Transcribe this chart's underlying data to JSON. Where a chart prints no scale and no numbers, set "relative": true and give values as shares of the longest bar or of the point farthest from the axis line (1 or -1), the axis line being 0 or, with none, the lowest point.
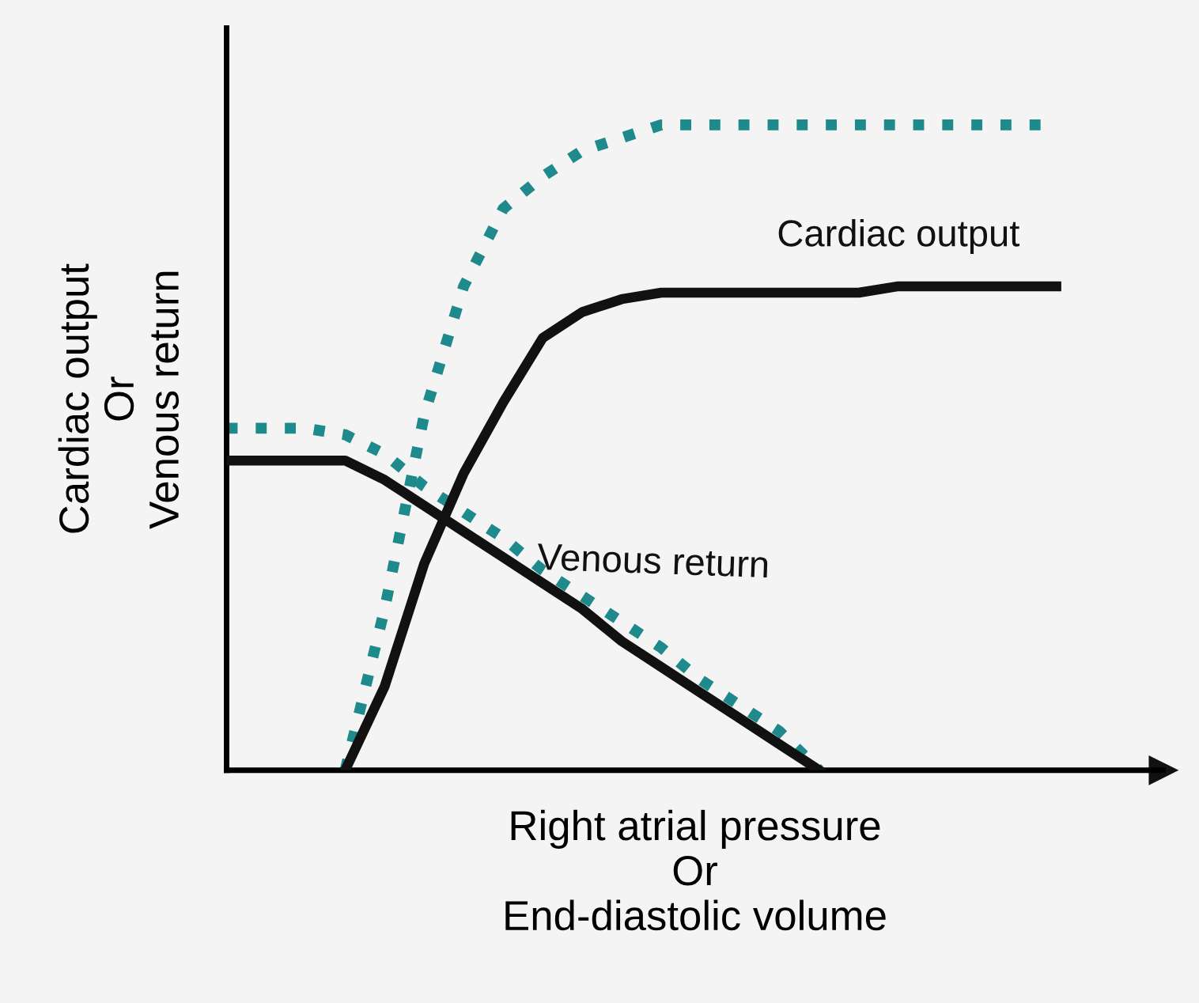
{
  "chart_data": {
    "type": "line",
    "relative": true,
    "xlabel": "Right atrial pressure\nOr\nEnd-diastolic volume",
    "ylabel": "Cardiac output\nOr\nVenous return",
    "categories": [
      null,
      null,
      null,
      null,
      null,
      null,
      null,
      null,
      null,
      null,
      null,
      null,
      null,
      null,
      null,
      null,
      null,
      null,
      null,
      null,
      null,
      null,
      null
    ],
    "series": [
      {
        "color": "#1f8a8c",
        "line_style": "dotted",
        "values": [
          null,
          null,
          null,
          0.0,
          0.25,
          0.55,
          0.75,
          0.87,
          0.92,
          0.96,
          0.98,
          1.0,
          1.0,
          1.0,
          1.0,
          1.0,
          1.0,
          1.0,
          1.0,
          1.0,
          1.0,
          1.0,
          null
        ]
      },
      {
        "name": "Cardiac output",
        "color": "#111111",
        "line_style": "solid",
        "values": [
          null,
          null,
          null,
          0.0,
          0.13,
          0.32,
          0.46,
          0.57,
          0.67,
          0.71,
          0.73,
          0.74,
          0.74,
          0.74,
          0.74,
          0.74,
          0.74,
          0.75,
          0.75,
          0.75,
          0.75,
          0.75,
          null
        ]
      },
      {
        "color": "#1f8a8c",
        "line_style": "dotted",
        "values": [
          0.53,
          0.53,
          0.53,
          0.52,
          0.49,
          0.44,
          0.4,
          0.36,
          0.31,
          0.27,
          0.23,
          0.19,
          0.14,
          0.1,
          0.06,
          0.0,
          null,
          null,
          null,
          null,
          null,
          null,
          null
        ]
      },
      {
        "name": "Venous return",
        "color": "#111111",
        "line_style": "solid",
        "values": [
          0.48,
          0.48,
          0.48,
          0.48,
          0.45,
          0.41,
          0.37,
          0.33,
          0.29,
          0.25,
          0.2,
          0.16,
          0.12,
          0.08,
          0.04,
          0.0,
          null,
          null,
          null,
          null,
          null,
          null,
          null
        ]
      }
    ],
    "marker": "none"
  }
}
